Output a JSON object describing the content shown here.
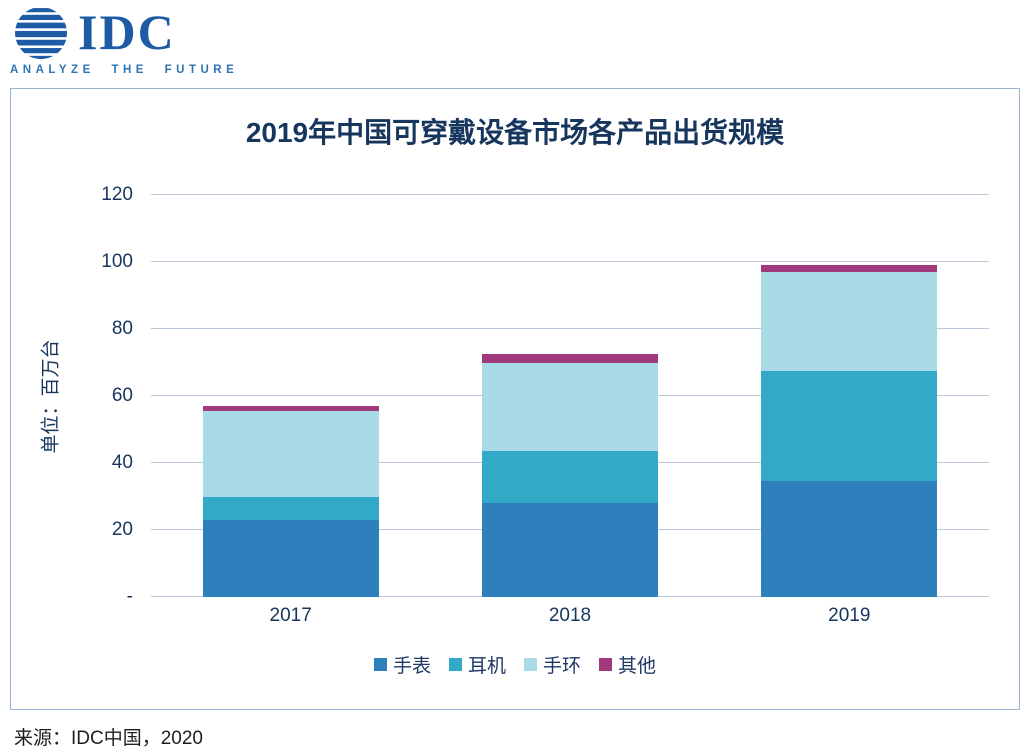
{
  "logo": {
    "brand": "IDC",
    "tagline": "ANALYZE THE FUTURE"
  },
  "source": "来源：IDC中国，2020",
  "chart_data": {
    "type": "bar",
    "stacked": true,
    "title": "2019年中国可穿戴设备市场各产品出货规模",
    "ylabel": "单位：百万台",
    "categories": [
      "2017",
      "2018",
      "2019"
    ],
    "series": [
      {
        "name": "手表",
        "color": "#2e80bd",
        "values": [
          23,
          28,
          34.5
        ]
      },
      {
        "name": "耳机",
        "color": "#32a9c7",
        "values": [
          7,
          15.5,
          33
        ]
      },
      {
        "name": "手环",
        "color": "#a9dbe7",
        "values": [
          25.5,
          26.5,
          29.5
        ]
      },
      {
        "name": "其他",
        "color": "#a1397f",
        "values": [
          1.5,
          2.5,
          2
        ]
      }
    ],
    "totals": [
      57,
      72.5,
      99
    ],
    "ylim": [
      0,
      120
    ],
    "yticks": [
      120,
      100,
      80,
      60,
      40,
      20,
      0
    ],
    "ytick_labels": [
      "120",
      "100",
      "80",
      "60",
      "40",
      "20",
      "-"
    ],
    "grid": true,
    "legend_position": "bottom"
  }
}
